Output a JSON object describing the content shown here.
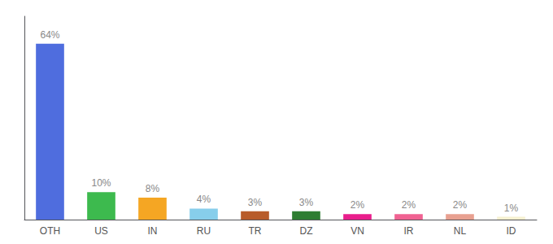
{
  "chart_data": {
    "type": "bar",
    "categories": [
      "OTH",
      "US",
      "IN",
      "RU",
      "TR",
      "DZ",
      "VN",
      "IR",
      "NL",
      "ID"
    ],
    "values": [
      64,
      10,
      8,
      4,
      3,
      3,
      2,
      2,
      2,
      1
    ],
    "value_labels": [
      "64%",
      "10%",
      "8%",
      "4%",
      "3%",
      "3%",
      "2%",
      "2%",
      "2%",
      "1%"
    ],
    "colors": [
      "#4f6dde",
      "#3dba4e",
      "#f5a623",
      "#87ceeb",
      "#b85c2a",
      "#2e7d32",
      "#e91e8c",
      "#f06292",
      "#e8a090",
      "#f5f0d0"
    ],
    "ylim": [
      0,
      74
    ],
    "grid": false,
    "data_labels": true,
    "tick_labels": "x"
  }
}
